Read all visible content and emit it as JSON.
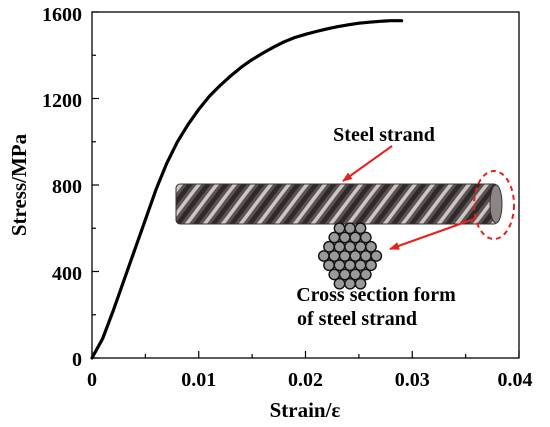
{
  "chart_data": {
    "type": "line",
    "xlabel": "Strain/ε",
    "ylabel": "Stress/MPa",
    "xlim": [
      0,
      0.04
    ],
    "ylim": [
      0,
      1600
    ],
    "x_ticks": [
      "0",
      "0.01",
      "0.02",
      "0.03",
      "0.04"
    ],
    "y_ticks": [
      "0",
      "400",
      "800",
      "1200",
      "1600"
    ],
    "grid": false,
    "series": [
      {
        "color": "#000000",
        "points": [
          [
            0,
            0
          ],
          [
            0.001,
            90
          ],
          [
            0.002,
            220
          ],
          [
            0.003,
            360
          ],
          [
            0.004,
            500
          ],
          [
            0.005,
            640
          ],
          [
            0.006,
            780
          ],
          [
            0.007,
            900
          ],
          [
            0.008,
            1000
          ],
          [
            0.009,
            1080
          ],
          [
            0.01,
            1150
          ],
          [
            0.011,
            1210
          ],
          [
            0.012,
            1260
          ],
          [
            0.013,
            1305
          ],
          [
            0.014,
            1345
          ],
          [
            0.015,
            1380
          ],
          [
            0.016,
            1410
          ],
          [
            0.017,
            1437
          ],
          [
            0.018,
            1462
          ],
          [
            0.019,
            1482
          ],
          [
            0.02,
            1497
          ],
          [
            0.021,
            1510
          ],
          [
            0.022,
            1522
          ],
          [
            0.023,
            1532
          ],
          [
            0.024,
            1541
          ],
          [
            0.025,
            1548
          ],
          [
            0.026,
            1553
          ],
          [
            0.027,
            1557
          ],
          [
            0.028,
            1560
          ],
          [
            0.029,
            1560
          ]
        ]
      }
    ],
    "annotations": {
      "strand_label": "Steel strand",
      "cross_section_label_line1": "Cross section form",
      "cross_section_label_line2": "of steel strand",
      "arrow_color": "#e8201a"
    }
  }
}
